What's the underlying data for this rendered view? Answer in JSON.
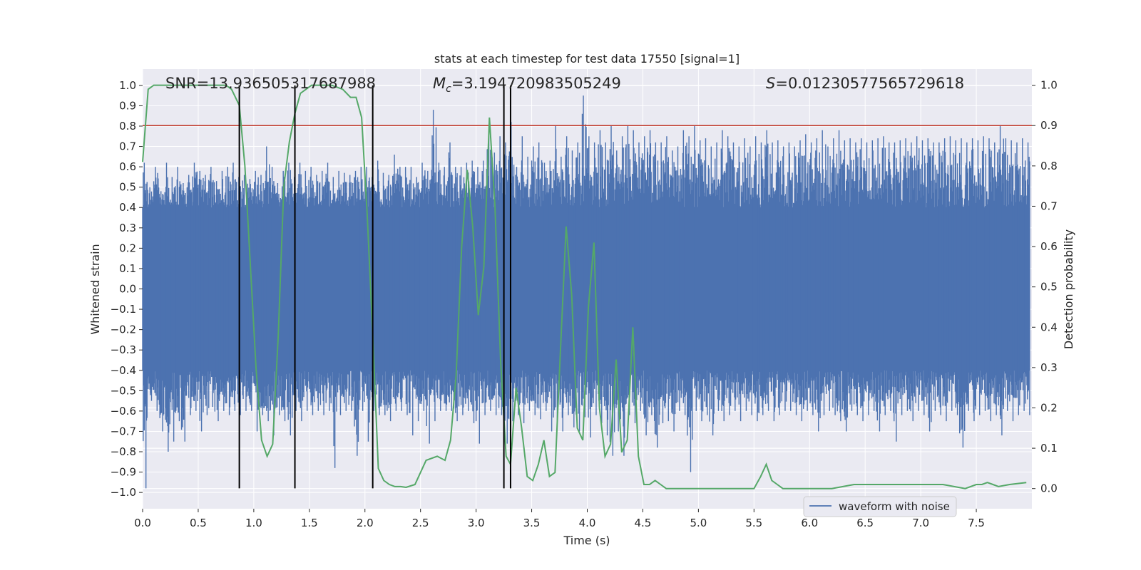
{
  "chart_data": {
    "type": "line",
    "title": "stats at each timestep for test data 17550 [signal=1]",
    "xlabel": "Time (s)",
    "ylabel_left": "Whitened strain",
    "ylabel_right": "Detection probability",
    "xlim": [
      0.0,
      8.0
    ],
    "ylim_left": [
      -1.08,
      1.08
    ],
    "ylim_right": [
      -0.05,
      1.04
    ],
    "x_ticks": [
      0.0,
      0.5,
      1.0,
      1.5,
      2.0,
      2.5,
      3.0,
      3.5,
      4.0,
      4.5,
      5.0,
      5.5,
      6.0,
      6.5,
      7.0,
      7.5
    ],
    "x_tick_labels": [
      "0.0",
      "0.5",
      "1.0",
      "1.5",
      "2.0",
      "2.5",
      "3.0",
      "3.5",
      "4.0",
      "4.5",
      "5.0",
      "5.5",
      "6.0",
      "6.5",
      "7.0",
      "7.5"
    ],
    "y_left_ticks": [
      1.0,
      0.9,
      0.8,
      0.7,
      0.6,
      0.5,
      0.4,
      0.3,
      0.2,
      0.1,
      0.0,
      -0.1,
      -0.2,
      -0.3,
      -0.4,
      -0.5,
      -0.6,
      -0.7,
      -0.8,
      -0.9,
      -1.0
    ],
    "y_left_tick_labels": [
      "1.0",
      "0.9",
      "0.8",
      "0.7",
      "0.6",
      "0.5",
      "0.4",
      "0.3",
      "0.2",
      "0.1",
      "0.0",
      "−0.1",
      "−0.2",
      "−0.3",
      "−0.4",
      "−0.5",
      "−0.6",
      "−0.7",
      "−0.8",
      "−0.9",
      "−1.0"
    ],
    "y_right_ticks": [
      1.0,
      0.9,
      0.8,
      0.7,
      0.6,
      0.5,
      0.4,
      0.3,
      0.2,
      0.1,
      0.0
    ],
    "y_right_tick_labels": [
      "1.0",
      "0.9",
      "0.8",
      "0.7",
      "0.6",
      "0.5",
      "0.4",
      "0.3",
      "0.2",
      "0.1",
      "0.0"
    ],
    "threshold": {
      "axis": "right",
      "value": 0.9,
      "color": "#c0392b"
    },
    "vertical_lines": [
      0.87,
      1.37,
      2.07,
      3.25,
      3.31
    ],
    "annotations": {
      "snr": "SNR=13.936505317687988",
      "mc_symbol": "M",
      "mc_subscript": "c",
      "mc_value": "=3.194720983505249",
      "s_symbol": "S",
      "s_value": "=0.01230577565729618"
    },
    "legend": {
      "entries": [
        "waveform with noise"
      ],
      "placement": "lower-right"
    },
    "series": [
      {
        "name": "waveform with noise",
        "axis": "left",
        "color": "#4c72b0",
        "kind": "noise-envelope",
        "samples": 160,
        "envelope_x": [
          0.0,
          0.05,
          0.1,
          0.15,
          0.2,
          0.25,
          0.3,
          0.35,
          0.4,
          0.45,
          0.5,
          0.55,
          0.6,
          0.65,
          0.7,
          0.75,
          0.8,
          0.85,
          0.9,
          0.95,
          1.0,
          1.05,
          1.1,
          1.15,
          1.2,
          1.25,
          1.3,
          1.35,
          1.4,
          1.45,
          1.5,
          1.55,
          1.6,
          1.65,
          1.7,
          1.75,
          1.8,
          1.85,
          1.9,
          1.95,
          2.0,
          2.05,
          2.1,
          2.15,
          2.2,
          2.25,
          2.3,
          2.35,
          2.4,
          2.45,
          2.5,
          2.55,
          2.6,
          2.65,
          2.7,
          2.75,
          2.8,
          2.85,
          2.9,
          2.95,
          3.0,
          3.05,
          3.1,
          3.15,
          3.2,
          3.25,
          3.3,
          3.35,
          3.4,
          3.45,
          3.5,
          3.55,
          3.6,
          3.65,
          3.7,
          3.75,
          3.8,
          3.85,
          3.9,
          3.95,
          4.0,
          4.05,
          4.1,
          4.15,
          4.2,
          4.25,
          4.3,
          4.35,
          4.4,
          4.45,
          4.5,
          4.55,
          4.6,
          4.65,
          4.7,
          4.75,
          4.8,
          4.85,
          4.9,
          4.95,
          5.0,
          5.05,
          5.1,
          5.15,
          5.2,
          5.25,
          5.3,
          5.35,
          5.4,
          5.45,
          5.5,
          5.55,
          5.6,
          5.65,
          5.7,
          5.75,
          5.8,
          5.85,
          5.9,
          5.95,
          6.0,
          6.05,
          6.1,
          6.15,
          6.2,
          6.25,
          6.3,
          6.35,
          6.4,
          6.45,
          6.5,
          6.55,
          6.6,
          6.65,
          6.7,
          6.75,
          6.8,
          6.85,
          6.9,
          6.95,
          7.0,
          7.05,
          7.1,
          7.15,
          7.2,
          7.25,
          7.3,
          7.35,
          7.4,
          7.45,
          7.5,
          7.55,
          7.6,
          7.65,
          7.7,
          7.75,
          7.8,
          7.85,
          7.9,
          7.95
        ],
        "envelope_max": [
          0.62,
          0.5,
          0.6,
          0.48,
          0.62,
          0.55,
          0.6,
          0.52,
          0.56,
          0.62,
          0.58,
          0.56,
          0.6,
          0.53,
          0.58,
          0.6,
          0.62,
          0.55,
          0.56,
          0.54,
          0.58,
          0.56,
          0.7,
          0.6,
          0.52,
          0.58,
          0.62,
          0.55,
          0.62,
          0.58,
          0.6,
          0.56,
          0.58,
          0.62,
          0.55,
          0.58,
          0.57,
          0.56,
          0.58,
          0.6,
          0.6,
          0.55,
          0.63,
          0.57,
          0.56,
          0.66,
          0.6,
          0.6,
          0.6,
          0.55,
          0.62,
          0.58,
          0.88,
          0.62,
          0.6,
          0.72,
          0.6,
          0.6,
          0.62,
          0.63,
          0.6,
          0.63,
          0.75,
          0.67,
          0.75,
          0.72,
          0.82,
          0.6,
          0.75,
          0.65,
          0.7,
          0.72,
          0.62,
          0.63,
          0.8,
          0.65,
          0.75,
          0.68,
          0.72,
          0.95,
          0.75,
          0.72,
          0.78,
          0.72,
          0.8,
          0.68,
          0.75,
          0.8,
          0.78,
          0.72,
          0.75,
          0.78,
          0.72,
          0.72,
          0.75,
          0.68,
          0.7,
          0.78,
          0.75,
          0.8,
          0.73,
          0.74,
          0.7,
          0.72,
          0.78,
          0.75,
          0.72,
          0.7,
          0.74,
          0.7,
          0.75,
          0.72,
          0.78,
          0.72,
          0.73,
          0.7,
          0.72,
          0.7,
          0.73,
          0.76,
          0.72,
          0.74,
          0.78,
          0.7,
          0.74,
          0.78,
          0.73,
          0.74,
          0.72,
          0.74,
          0.72,
          0.73,
          0.74,
          0.75,
          0.72,
          0.72,
          0.73,
          0.74,
          0.72,
          0.75,
          0.73,
          0.74,
          0.72,
          0.72,
          0.74,
          0.75,
          0.73,
          0.74,
          0.72,
          0.74,
          0.73,
          0.75,
          0.74,
          0.72,
          0.8,
          0.74,
          0.73,
          0.72,
          0.74,
          0.72
        ],
        "envelope_min": [
          -0.98,
          -0.55,
          -0.6,
          -0.7,
          -0.8,
          -0.75,
          -0.65,
          -0.75,
          -0.62,
          -0.6,
          -0.7,
          -0.62,
          -0.58,
          -0.65,
          -0.6,
          -0.62,
          -0.6,
          -0.62,
          -0.6,
          -0.6,
          -0.7,
          -0.62,
          -0.65,
          -0.72,
          -0.62,
          -0.65,
          -0.72,
          -0.6,
          -0.65,
          -0.6,
          -0.62,
          -0.6,
          -0.62,
          -0.6,
          -0.88,
          -0.62,
          -0.6,
          -0.6,
          -0.82,
          -0.6,
          -0.75,
          -0.6,
          -0.62,
          -0.62,
          -0.65,
          -0.6,
          -0.6,
          -0.62,
          -0.72,
          -0.65,
          -0.6,
          -0.76,
          -0.65,
          -0.6,
          -0.6,
          -0.6,
          -0.65,
          -0.62,
          -0.6,
          -0.66,
          -0.76,
          -0.62,
          -0.6,
          -0.62,
          -0.62,
          -0.76,
          -0.65,
          -0.62,
          -0.66,
          -0.6,
          -0.62,
          -0.64,
          -0.6,
          -0.7,
          -0.65,
          -0.7,
          -0.62,
          -0.68,
          -0.7,
          -0.63,
          -0.73,
          -0.62,
          -0.66,
          -0.72,
          -0.82,
          -0.7,
          -0.82,
          -0.62,
          -0.66,
          -0.6,
          -0.72,
          -0.62,
          -0.78,
          -0.66,
          -0.65,
          -0.7,
          -0.6,
          -0.62,
          -0.9,
          -0.6,
          -0.65,
          -0.62,
          -0.72,
          -0.6,
          -0.65,
          -0.62,
          -0.6,
          -0.65,
          -0.6,
          -0.62,
          -0.65,
          -0.62,
          -0.6,
          -0.65,
          -0.62,
          -0.6,
          -0.6,
          -0.62,
          -0.65,
          -0.6,
          -0.62,
          -0.7,
          -0.62,
          -0.6,
          -0.62,
          -0.65,
          -0.7,
          -0.6,
          -0.62,
          -0.65,
          -0.62,
          -0.6,
          -0.7,
          -0.62,
          -0.6,
          -0.75,
          -0.62,
          -0.6,
          -0.65,
          -0.6,
          -0.62,
          -0.7,
          -0.6,
          -0.62,
          -0.65,
          -0.6,
          -0.62,
          -0.78,
          -0.6,
          -0.65,
          -0.62,
          -0.6,
          -0.65,
          -0.62,
          -0.72,
          -0.6,
          -0.65,
          -0.62,
          -0.6,
          -0.62
        ],
        "band": [
          -0.4,
          0.4
        ]
      },
      {
        "name": "detection probability",
        "axis": "right",
        "color": "#55a868",
        "x": [
          0.0,
          0.05,
          0.1,
          0.2,
          0.3,
          0.4,
          0.5,
          0.6,
          0.7,
          0.75,
          0.8,
          0.87,
          0.92,
          0.97,
          1.02,
          1.07,
          1.12,
          1.17,
          1.22,
          1.27,
          1.32,
          1.37,
          1.42,
          1.47,
          1.52,
          1.6,
          1.7,
          1.8,
          1.87,
          1.92,
          1.97,
          2.02,
          2.07,
          2.12,
          2.17,
          2.22,
          2.27,
          2.32,
          2.37,
          2.45,
          2.55,
          2.65,
          2.72,
          2.77,
          2.82,
          2.87,
          2.92,
          2.97,
          3.02,
          3.07,
          3.12,
          3.17,
          3.22,
          3.27,
          3.31,
          3.36,
          3.41,
          3.46,
          3.51,
          3.56,
          3.61,
          3.66,
          3.71,
          3.76,
          3.81,
          3.86,
          3.91,
          3.96,
          4.01,
          4.06,
          4.11,
          4.16,
          4.21,
          4.26,
          4.31,
          4.36,
          4.41,
          4.46,
          4.51,
          4.56,
          4.61,
          4.66,
          4.71,
          4.76,
          4.81,
          4.86,
          4.91,
          4.96,
          5.01,
          5.1,
          5.3,
          5.5,
          5.56,
          5.61,
          5.66,
          5.71,
          5.76,
          5.81,
          5.9,
          6.0,
          6.2,
          6.4,
          6.45,
          6.5,
          6.6,
          6.8,
          7.0,
          7.2,
          7.4,
          7.5,
          7.55,
          7.6,
          7.65,
          7.7,
          7.8,
          7.95
        ],
        "values": [
          0.81,
          0.99,
          1.0,
          1.0,
          1.0,
          1.0,
          1.0,
          1.0,
          1.0,
          1.0,
          0.99,
          0.95,
          0.8,
          0.55,
          0.3,
          0.12,
          0.08,
          0.11,
          0.38,
          0.75,
          0.86,
          0.93,
          0.98,
          0.99,
          1.0,
          1.0,
          1.0,
          0.99,
          0.97,
          0.97,
          0.92,
          0.68,
          0.38,
          0.05,
          0.02,
          0.01,
          0.005,
          0.005,
          0.003,
          0.01,
          0.07,
          0.08,
          0.07,
          0.12,
          0.28,
          0.6,
          0.79,
          0.65,
          0.43,
          0.55,
          0.92,
          0.7,
          0.32,
          0.08,
          0.06,
          0.25,
          0.15,
          0.03,
          0.02,
          0.06,
          0.12,
          0.03,
          0.04,
          0.35,
          0.65,
          0.48,
          0.15,
          0.12,
          0.45,
          0.61,
          0.2,
          0.08,
          0.11,
          0.32,
          0.09,
          0.12,
          0.4,
          0.08,
          0.01,
          0.01,
          0.02,
          0.01,
          0.0,
          0.0,
          0.0,
          0.0,
          0.0,
          0.0,
          0.0,
          0.0,
          0.0,
          0.0,
          0.03,
          0.06,
          0.02,
          0.01,
          0.0,
          0.0,
          0.0,
          0.0,
          0.0,
          0.01,
          0.01,
          0.01,
          0.01,
          0.01,
          0.01,
          0.01,
          0.0,
          0.01,
          0.01,
          0.015,
          0.01,
          0.005,
          0.01,
          0.015
        ]
      }
    ]
  }
}
